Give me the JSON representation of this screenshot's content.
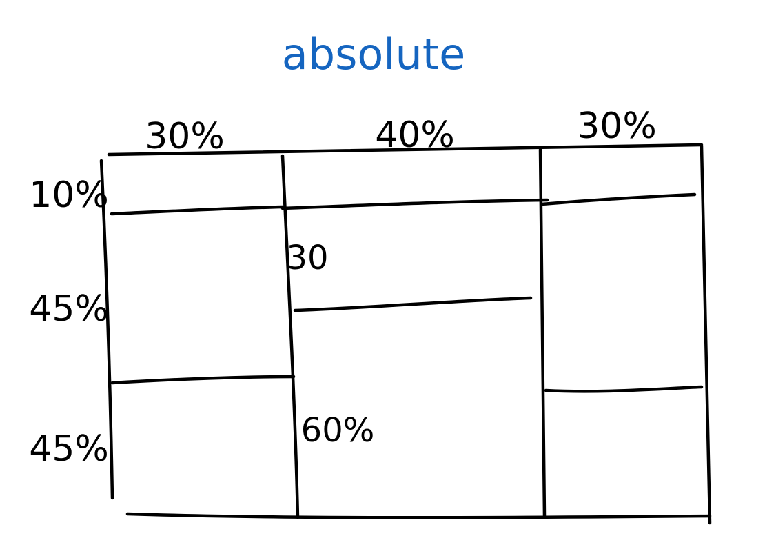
{
  "title": "absolute",
  "title_color": "#1565C0",
  "ink_color": "#000000",
  "column_labels": [
    "30%",
    "40%",
    "30%"
  ],
  "row_labels": [
    "10%",
    "45%",
    "45%"
  ],
  "inner_labels": {
    "middle_column_row2": "30",
    "middle_column_row3": "60%"
  }
}
